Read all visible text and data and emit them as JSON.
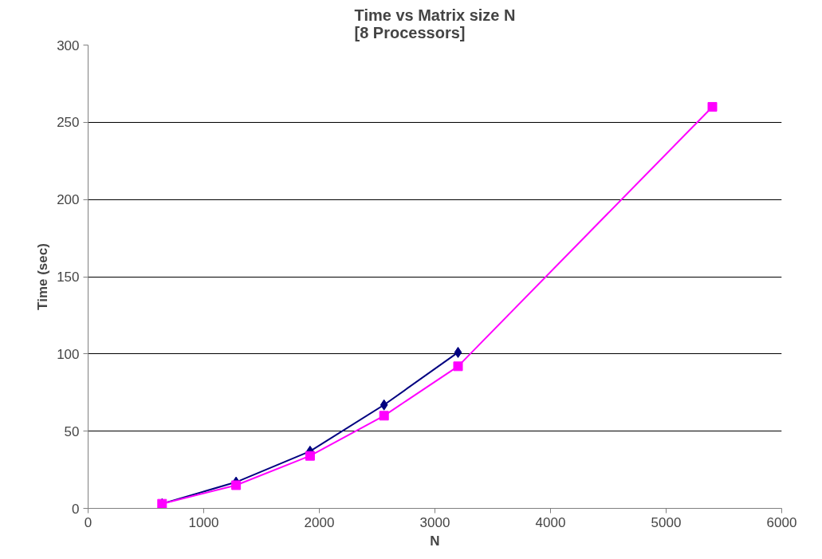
{
  "chart_data": {
    "type": "line",
    "title": "Time vs Matrix size N\n[8 Processors]",
    "xlabel": "N",
    "ylabel": "Time (sec)",
    "x": [
      640,
      1280,
      1920,
      2560,
      3200
    ],
    "series": [
      {
        "color": "#000080",
        "marker": "diamond",
        "values": [
          3,
          17,
          37,
          67,
          101
        ]
      },
      {
        "color": "#ff00ff",
        "marker": "square",
        "x": [
          640,
          1280,
          1920,
          2560,
          3200,
          5400
        ],
        "values": [
          3,
          15,
          34,
          60,
          92,
          260
        ]
      }
    ],
    "xlim": [
      0,
      6000
    ],
    "xticks": [
      0,
      1000,
      2000,
      3000,
      4000,
      5000,
      6000
    ],
    "ylim": [
      0,
      300
    ],
    "yticks": [
      0,
      50,
      100,
      150,
      200,
      250,
      300
    ],
    "grid": "y"
  }
}
